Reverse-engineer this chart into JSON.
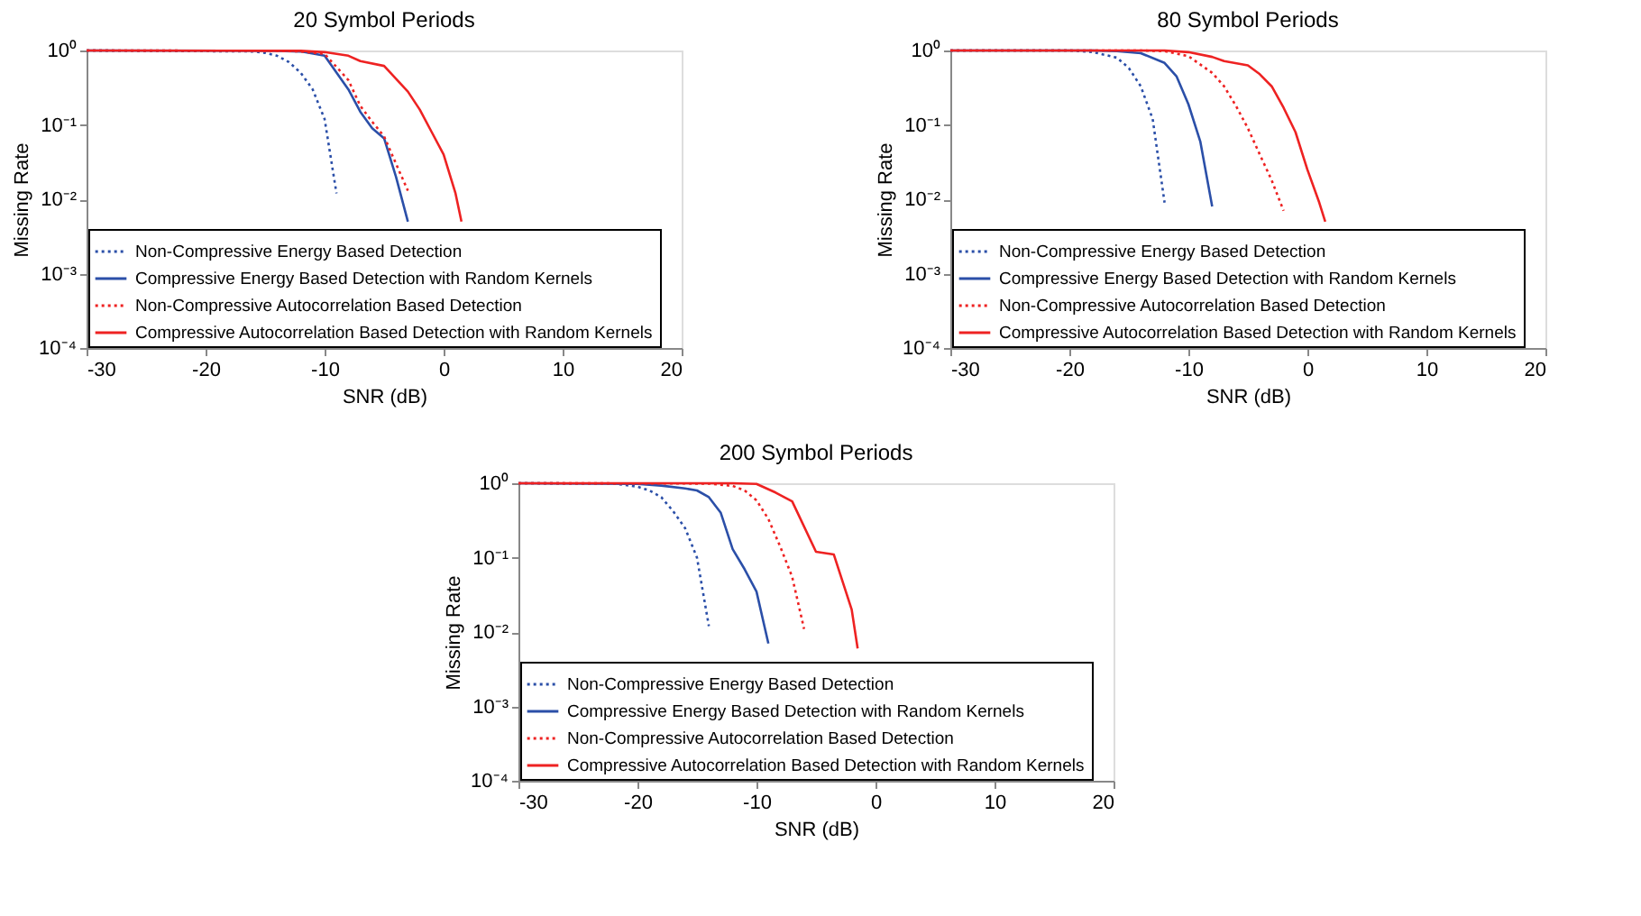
{
  "chart_data": [
    {
      "type": "line",
      "title": "20 Symbol Periods",
      "xlabel": "SNR (dB)",
      "ylabel": "Missing Rate",
      "log": "y",
      "legend": "bottom left",
      "grid": false,
      "xlim": [
        -30,
        20
      ],
      "xticks": [
        -30,
        -20,
        -10,
        0,
        10,
        20
      ],
      "ylim": [
        0.0001,
        1
      ],
      "yticks": [
        {
          "value": 0.0001,
          "label": "10⁻⁴"
        },
        {
          "value": 0.001,
          "label": "10⁻³"
        },
        {
          "value": 0.01,
          "label": "10⁻²"
        },
        {
          "value": 0.1,
          "label": "10⁻¹"
        },
        {
          "value": 1,
          "label": "10⁰"
        }
      ],
      "series": [
        {
          "name": "Non-Compressive Energy Based Detection",
          "color": "#2b4fa8",
          "line_style": "dotted",
          "x": [
            -30,
            -16,
            -15,
            -14,
            -13,
            -12,
            -11,
            -10,
            -9
          ],
          "values": [
            1,
            0.97,
            0.93,
            0.85,
            0.7,
            0.5,
            0.3,
            0.12,
            0.012
          ]
        },
        {
          "name": "Compressive Energy Based Detection with Random Kernels",
          "color": "#2b4fa8",
          "line_style": "solid",
          "x": [
            -30,
            -14,
            -12,
            -10,
            -8,
            -7,
            -6,
            -5,
            -4,
            -3
          ],
          "values": [
            1,
            0.99,
            0.97,
            0.85,
            0.3,
            0.15,
            0.09,
            0.066,
            0.02,
            0.005
          ]
        },
        {
          "name": "Non-Compressive Autocorrelation Based Detection",
          "color": "#ee2222",
          "line_style": "dotted",
          "x": [
            -30,
            -14,
            -12,
            -10,
            -8,
            -7,
            -6,
            -5,
            -4,
            -3
          ],
          "values": [
            1,
            0.99,
            0.97,
            0.9,
            0.4,
            0.18,
            0.11,
            0.07,
            0.03,
            0.013
          ]
        },
        {
          "name": "Compressive Autocorrelation Based Detection with Random Kernels",
          "color": "#ee2222",
          "line_style": "solid",
          "x": [
            -30,
            -12,
            -10,
            -8,
            -7,
            -5,
            -3,
            -2,
            -1,
            0,
            1,
            1.5
          ],
          "values": [
            1,
            0.99,
            0.95,
            0.85,
            0.72,
            0.62,
            0.28,
            0.16,
            0.08,
            0.04,
            0.012,
            0.005
          ]
        }
      ]
    },
    {
      "type": "line",
      "title": "80 Symbol Periods",
      "xlabel": "SNR (dB)",
      "ylabel": "Missing Rate",
      "log": "y",
      "legend": "bottom left",
      "grid": false,
      "xlim": [
        -30,
        20
      ],
      "xticks": [
        -30,
        -20,
        -10,
        0,
        10,
        20
      ],
      "ylim": [
        0.0001,
        1
      ],
      "yticks": [
        {
          "value": 0.0001,
          "label": "10⁻⁴"
        },
        {
          "value": 0.001,
          "label": "10⁻³"
        },
        {
          "value": 0.01,
          "label": "10⁻²"
        },
        {
          "value": 0.1,
          "label": "10⁻¹"
        },
        {
          "value": 1,
          "label": "10⁰"
        }
      ],
      "series": [
        {
          "name": "Non-Compressive Energy Based Detection",
          "color": "#2b4fa8",
          "line_style": "dotted",
          "x": [
            -30,
            -20,
            -18,
            -16,
            -15,
            -14,
            -13,
            -12
          ],
          "values": [
            1,
            1,
            0.95,
            0.8,
            0.58,
            0.33,
            0.12,
            0.009
          ]
        },
        {
          "name": "Compressive Energy Based Detection with Random Kernels",
          "color": "#2b4fa8",
          "line_style": "solid",
          "x": [
            -30,
            -18,
            -16,
            -14,
            -12,
            -11,
            -10,
            -9,
            -8
          ],
          "values": [
            1,
            1,
            0.98,
            0.92,
            0.68,
            0.45,
            0.19,
            0.06,
            0.008
          ]
        },
        {
          "name": "Non-Compressive Autocorrelation Based Detection",
          "color": "#ee2222",
          "line_style": "dotted",
          "x": [
            -30,
            -14,
            -12,
            -10,
            -8,
            -7,
            -6,
            -5,
            -4,
            -3,
            -2
          ],
          "values": [
            1,
            1,
            0.98,
            0.84,
            0.5,
            0.33,
            0.18,
            0.09,
            0.04,
            0.018,
            0.007
          ]
        },
        {
          "name": "Compressive Autocorrelation Based Detection with Random Kernels",
          "color": "#ee2222",
          "line_style": "solid",
          "x": [
            -30,
            -12,
            -10,
            -8,
            -7,
            -5,
            -4,
            -3,
            -2,
            -1,
            0,
            1,
            1.5
          ],
          "values": [
            1,
            1,
            0.95,
            0.82,
            0.72,
            0.63,
            0.48,
            0.33,
            0.17,
            0.08,
            0.025,
            0.009,
            0.005
          ]
        }
      ]
    },
    {
      "type": "line",
      "title": "200 Symbol Periods",
      "xlabel": "SNR (dB)",
      "ylabel": "Missing Rate",
      "log": "y",
      "legend": "bottom left",
      "grid": false,
      "xlim": [
        -30,
        20
      ],
      "xticks": [
        -30,
        -20,
        -10,
        0,
        10,
        20
      ],
      "ylim": [
        0.0001,
        1
      ],
      "yticks": [
        {
          "value": 0.0001,
          "label": "10⁻⁴"
        },
        {
          "value": 0.001,
          "label": "10⁻³"
        },
        {
          "value": 0.01,
          "label": "10⁻²"
        },
        {
          "value": 0.1,
          "label": "10⁻¹"
        },
        {
          "value": 1,
          "label": "10⁰"
        }
      ],
      "series": [
        {
          "name": "Non-Compressive Energy Based Detection",
          "color": "#2b4fa8",
          "line_style": "dotted",
          "x": [
            -30,
            -22,
            -20,
            -19,
            -18,
            -17,
            -16,
            -15,
            -14
          ],
          "values": [
            1,
            0.99,
            0.9,
            0.8,
            0.65,
            0.42,
            0.25,
            0.1,
            0.012
          ]
        },
        {
          "name": "Compressive Energy Based Detection with Random Kernels",
          "color": "#2b4fa8",
          "line_style": "solid",
          "x": [
            -30,
            -20,
            -18,
            -16,
            -15,
            -14,
            -13,
            -12,
            -11,
            -10,
            -9
          ],
          "values": [
            1,
            0.98,
            0.93,
            0.85,
            0.8,
            0.65,
            0.4,
            0.13,
            0.07,
            0.035,
            0.007
          ]
        },
        {
          "name": "Non-Compressive Autocorrelation Based Detection",
          "color": "#ee2222",
          "line_style": "dotted",
          "x": [
            -30,
            -14,
            -12,
            -11,
            -10,
            -9,
            -8,
            -7,
            -6
          ],
          "values": [
            1,
            0.99,
            0.92,
            0.8,
            0.59,
            0.33,
            0.14,
            0.055,
            0.011
          ]
        },
        {
          "name": "Compressive Autocorrelation Based Detection with Random Kernels",
          "color": "#ee2222",
          "line_style": "solid",
          "x": [
            -30,
            -12,
            -10,
            -8.4,
            -7,
            -5,
            -3.5,
            -2,
            -1.5
          ],
          "values": [
            1,
            1,
            0.98,
            0.75,
            0.57,
            0.12,
            0.11,
            0.02,
            0.006
          ]
        }
      ]
    }
  ]
}
